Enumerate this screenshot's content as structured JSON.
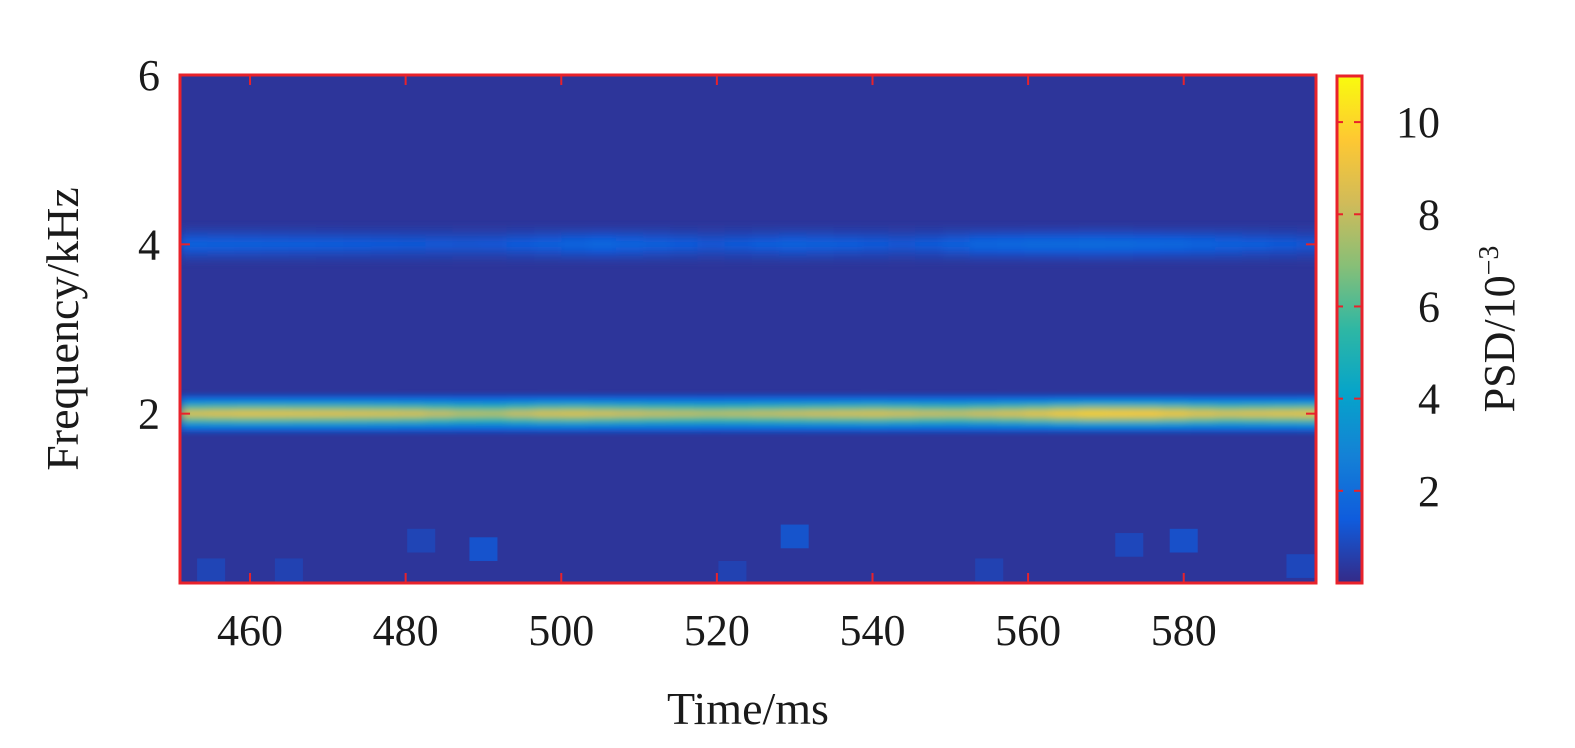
{
  "chart_data": {
    "type": "heatmap",
    "title": "",
    "xlabel": "Time/ms",
    "ylabel": "Frequency/kHz",
    "xlim": [
      451,
      597
    ],
    "ylim": [
      0,
      6
    ],
    "xticks": [
      460,
      480,
      500,
      520,
      540,
      560,
      580
    ],
    "yticks": [
      2,
      4,
      6
    ],
    "colorbar": {
      "label_base": "PSD/10",
      "label_exponent": "−3",
      "range": [
        0,
        11
      ],
      "ticks": [
        2,
        4,
        6,
        8,
        10
      ],
      "colormap": "parula",
      "colors": [
        "#352a87",
        "#0f5cdd",
        "#1481d6",
        "#06a4ca",
        "#2eb7a4",
        "#87bf77",
        "#d1bb59",
        "#fec832",
        "#f9fb0e"
      ]
    },
    "frame_color": "#e8222b",
    "background_value": 0.3,
    "bands": [
      {
        "frequency_kHz": 2.0,
        "psd_along_time": [
          {
            "t": 452,
            "v": 8.6
          },
          {
            "t": 460,
            "v": 8.9
          },
          {
            "t": 470,
            "v": 8.8
          },
          {
            "t": 480,
            "v": 8.6
          },
          {
            "t": 490,
            "v": 7.6
          },
          {
            "t": 500,
            "v": 8.8
          },
          {
            "t": 510,
            "v": 8.2
          },
          {
            "t": 520,
            "v": 7.8
          },
          {
            "t": 530,
            "v": 8.2
          },
          {
            "t": 540,
            "v": 8.6
          },
          {
            "t": 550,
            "v": 8.0
          },
          {
            "t": 560,
            "v": 8.8
          },
          {
            "t": 568,
            "v": 9.8
          },
          {
            "t": 576,
            "v": 9.6
          },
          {
            "t": 585,
            "v": 8.6
          },
          {
            "t": 596,
            "v": 9.0
          }
        ]
      },
      {
        "frequency_kHz": 4.0,
        "psd_along_time": [
          {
            "t": 452,
            "v": 1.6
          },
          {
            "t": 470,
            "v": 1.4
          },
          {
            "t": 490,
            "v": 1.2
          },
          {
            "t": 505,
            "v": 1.8
          },
          {
            "t": 520,
            "v": 1.2
          },
          {
            "t": 530,
            "v": 1.6
          },
          {
            "t": 545,
            "v": 1.2
          },
          {
            "t": 555,
            "v": 1.8
          },
          {
            "t": 570,
            "v": 2.0
          },
          {
            "t": 585,
            "v": 1.6
          },
          {
            "t": 596,
            "v": 1.2
          }
        ]
      }
    ],
    "low_frequency_patches": [
      {
        "t": 490,
        "f": 0.4,
        "v": 1.4
      },
      {
        "t": 530,
        "f": 0.55,
        "v": 1.5
      },
      {
        "t": 580,
        "f": 0.5,
        "v": 1.3
      },
      {
        "t": 573,
        "f": 0.45,
        "v": 1.0
      },
      {
        "t": 482,
        "f": 0.5,
        "v": 0.9
      },
      {
        "t": 455,
        "f": 0.15,
        "v": 0.9
      },
      {
        "t": 465,
        "f": 0.15,
        "v": 0.8
      },
      {
        "t": 522,
        "f": 0.12,
        "v": 0.8
      },
      {
        "t": 555,
        "f": 0.15,
        "v": 0.8
      },
      {
        "t": 595,
        "f": 0.2,
        "v": 1.0
      }
    ]
  }
}
